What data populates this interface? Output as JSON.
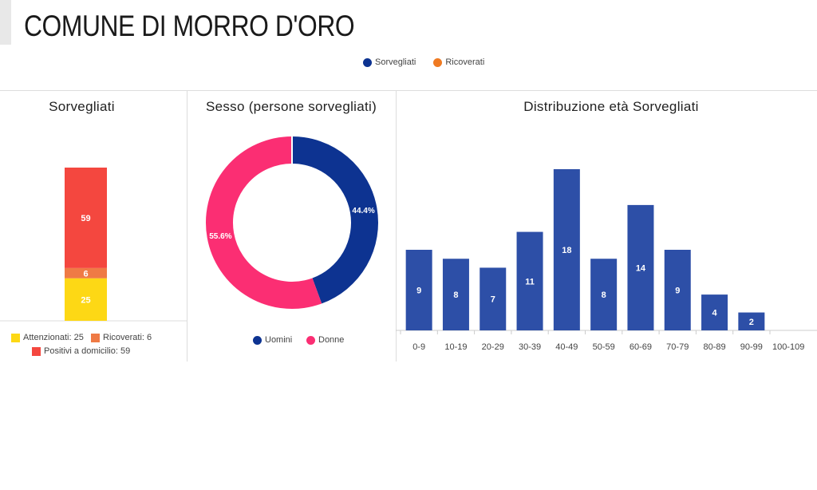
{
  "page_title": "COMUNE DI MORRO D'ORO",
  "top_legend": [
    {
      "label": "Sorvegliati",
      "color": "#0d3391"
    },
    {
      "label": "Ricoverati",
      "color": "#ef7a22"
    }
  ],
  "colors": {
    "yellow": "#fdd815",
    "orange": "#ef7a45",
    "red": "#f4473f",
    "navy": "#0d3391",
    "pink": "#fb2e73",
    "blue": "#2d4fa7"
  },
  "chart_data": [
    {
      "type": "bar",
      "title": "Sorvegliati",
      "stacked": true,
      "series": [
        {
          "name": "Attenzionati",
          "values": [
            25
          ],
          "color": "#fdd815"
        },
        {
          "name": "Ricoverati",
          "values": [
            6
          ],
          "color": "#ef7a45"
        },
        {
          "name": "Positivi a domicilio",
          "values": [
            59
          ],
          "color": "#f4473f"
        }
      ],
      "legend": [
        {
          "label": "Attenzionati: 25",
          "color": "#fdd815"
        },
        {
          "label": "Ricoverati: 6",
          "color": "#ef7a45"
        },
        {
          "label": "Positivi a domicilio: 59",
          "color": "#f4473f"
        }
      ]
    },
    {
      "type": "pie",
      "title": "Sesso (persone sorvegliati)",
      "donut": true,
      "slices": [
        {
          "label": "Uomini",
          "value": 44.4,
          "display": "44.4%",
          "color": "#0d3391"
        },
        {
          "label": "Donne",
          "value": 55.6,
          "display": "55.6%",
          "color": "#fb2e73"
        }
      ]
    },
    {
      "type": "bar",
      "title": "Distribuzione età Sorvegliati",
      "categories": [
        "0-9",
        "10-19",
        "20-29",
        "30-39",
        "40-49",
        "50-59",
        "60-69",
        "70-79",
        "80-89",
        "90-99",
        "100-109"
      ],
      "values": [
        9,
        8,
        7,
        11,
        18,
        8,
        14,
        9,
        4,
        2,
        0
      ],
      "color": "#2d4fa7",
      "ylim": [
        0,
        18
      ]
    }
  ]
}
